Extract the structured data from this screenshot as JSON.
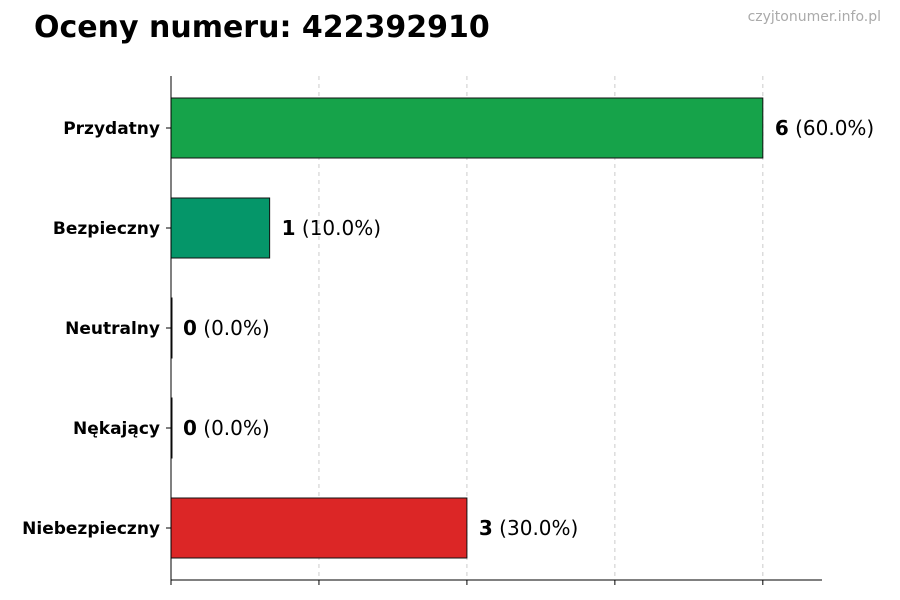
{
  "header": {
    "title": "Oceny numeru: 422392910",
    "watermark": "czyjtonumer.info.pl"
  },
  "chart_data": {
    "type": "bar",
    "orientation": "horizontal",
    "title": "Oceny numeru: 422392910",
    "xlabel": "",
    "ylabel": "",
    "xlim": [
      0,
      6.6
    ],
    "x_ticks": [
      0,
      1.5,
      3,
      4.5,
      6
    ],
    "grid": true,
    "categories": [
      "Przydatny",
      "Bezpieczny",
      "Neutralny",
      "Nękający",
      "Niebezpieczny"
    ],
    "values": [
      6,
      1,
      0,
      0,
      3
    ],
    "value_labels": [
      "6",
      "1",
      "0",
      "0",
      "3"
    ],
    "percent_labels": [
      "(60.0%)",
      "(10.0%)",
      "(0.0%)",
      "(0.0%)",
      "(30.0%)"
    ],
    "colors": [
      "#16a34a",
      "#059669",
      "#6b7280",
      "#7c3aed",
      "#dc2626"
    ]
  }
}
